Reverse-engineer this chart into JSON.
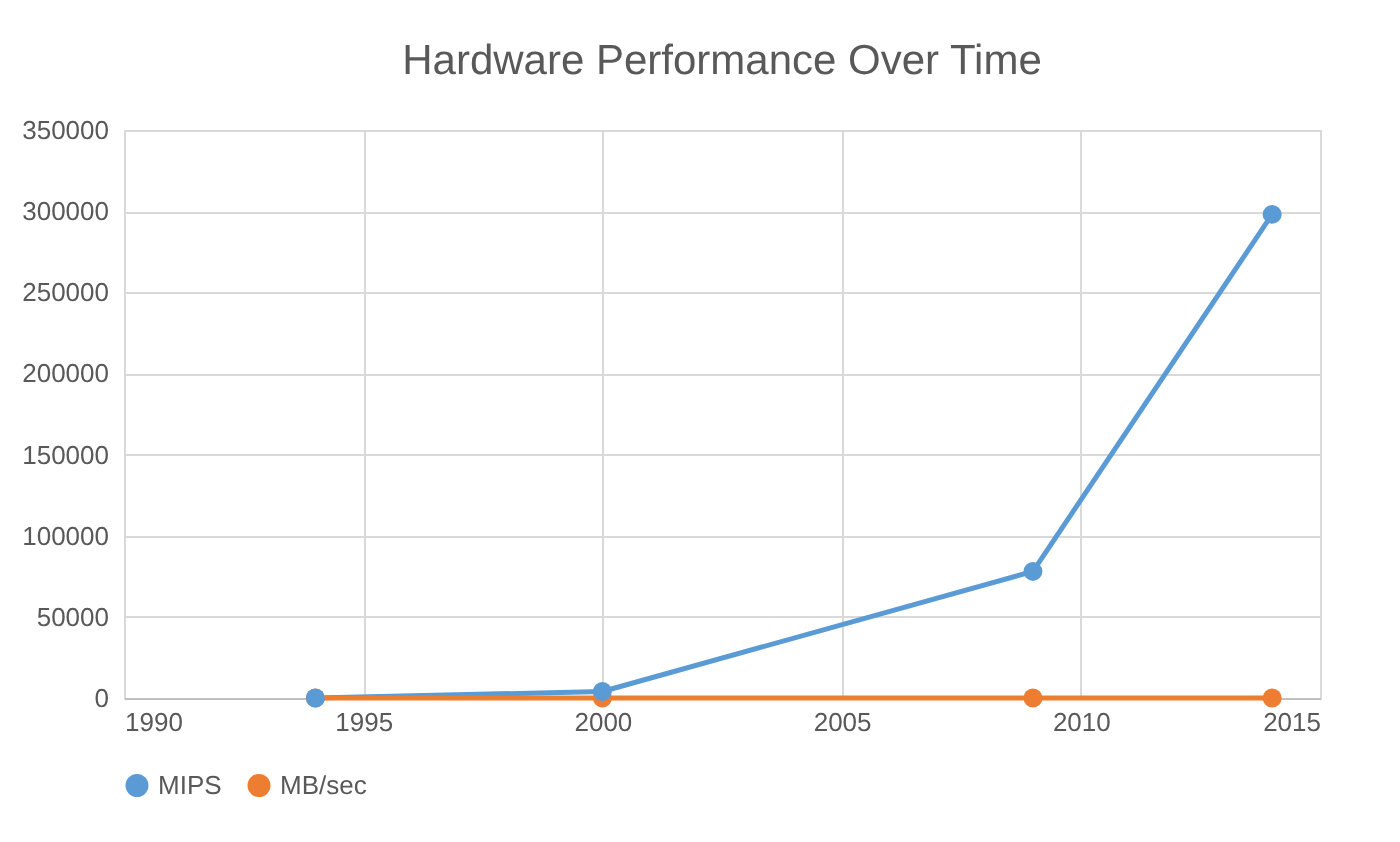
{
  "chart_data": {
    "type": "line",
    "title": "Hardware Performance Over Time",
    "x": [
      1994,
      2000,
      2009,
      2014
    ],
    "series": [
      {
        "name": "MIPS",
        "color": "#5b9bd5",
        "values": [
          0,
          4000,
          78000,
          298000
        ]
      },
      {
        "name": "MB/sec",
        "color": "#ed7d31",
        "values": [
          0,
          0,
          0,
          0
        ]
      }
    ],
    "xlim": [
      1990,
      2015
    ],
    "xticks": [
      1990,
      1995,
      2000,
      2005,
      2010,
      2015
    ],
    "ylim": [
      0,
      350000
    ],
    "yticks": [
      0,
      50000,
      100000,
      150000,
      200000,
      250000,
      300000,
      350000
    ],
    "grid": true,
    "legend": "bottom",
    "marker": "circle",
    "line_style": "solid"
  }
}
